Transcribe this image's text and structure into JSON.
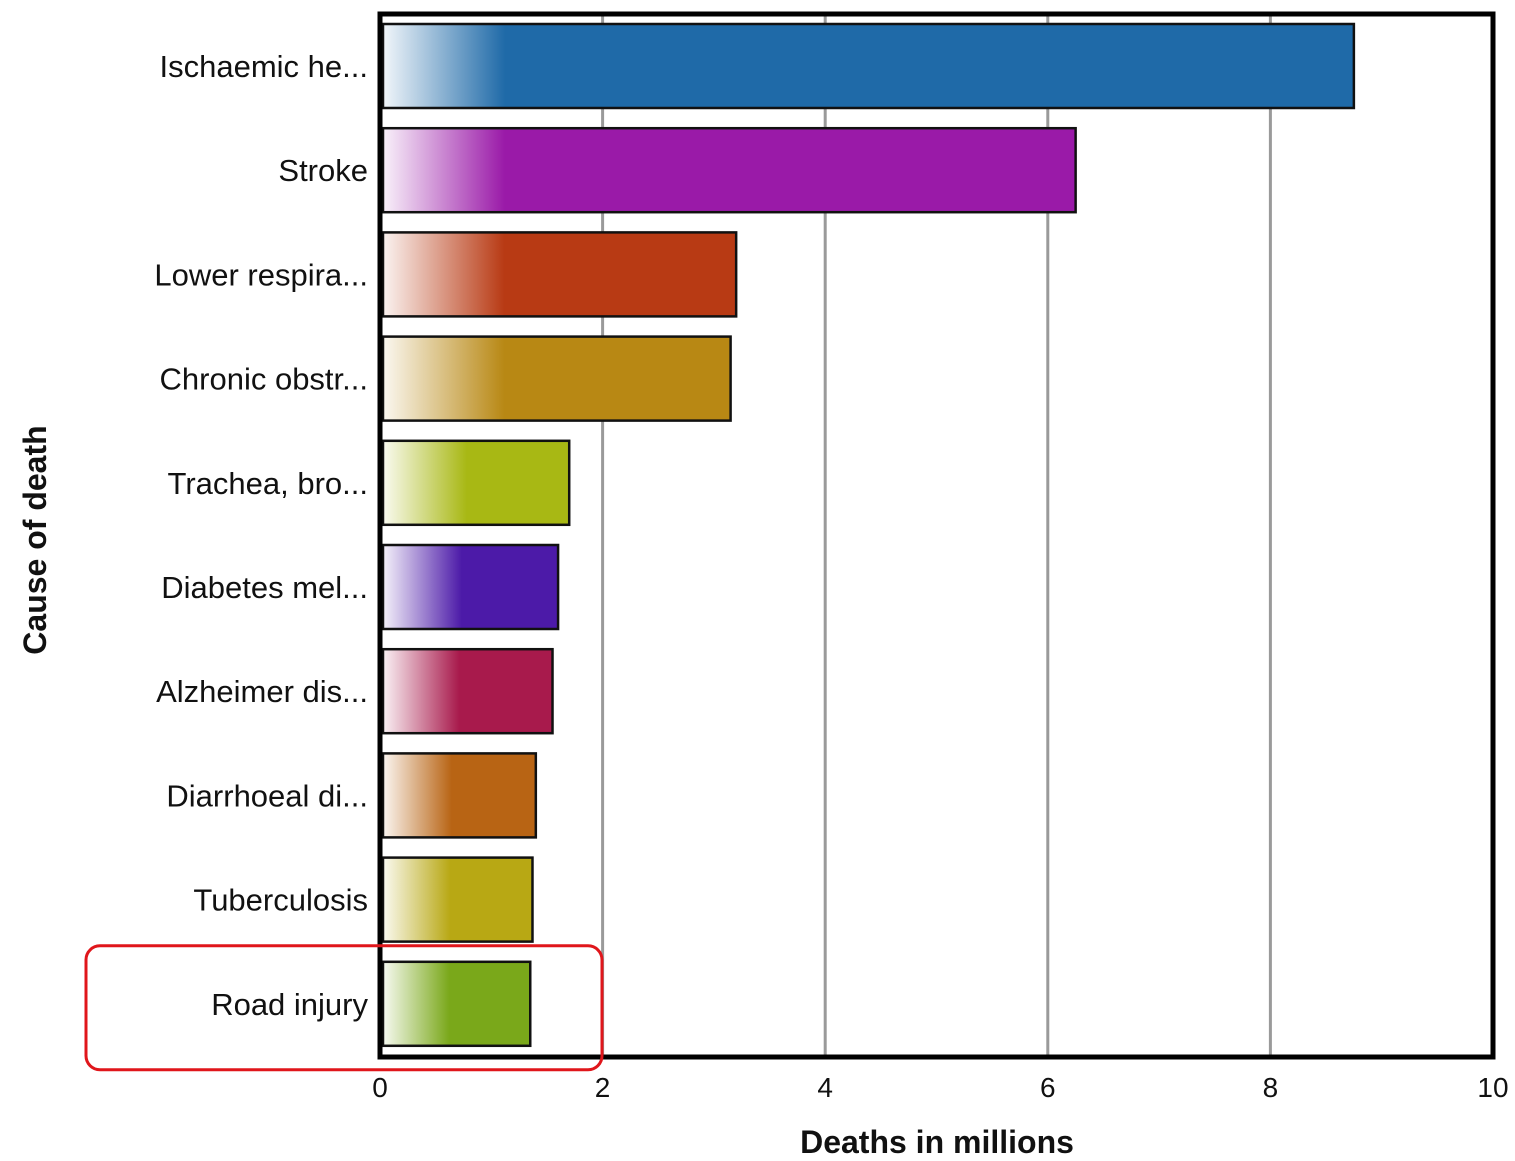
{
  "chart_data": {
    "type": "bar",
    "orientation": "horizontal",
    "categories": [
      "Ischaemic he...",
      "Stroke",
      "Lower respira...",
      "Chronic obstr...",
      "Trachea, bro...",
      "Diabetes mel...",
      "Alzheimer dis...",
      "Diarrhoeal di...",
      "Tuberculosis",
      "Road injury"
    ],
    "values": [
      8.75,
      6.25,
      3.2,
      3.15,
      1.7,
      1.6,
      1.55,
      1.4,
      1.37,
      1.35
    ],
    "colors": [
      "#1f6aa8",
      "#9a1aa8",
      "#b83a14",
      "#b88814",
      "#a8b814",
      "#4c1aa8",
      "#a81a4c",
      "#b86414",
      "#b8a814",
      "#7aa81a"
    ],
    "xlabel": "Deaths in millions",
    "ylabel": "Cause of death",
    "xlim": [
      0,
      10
    ],
    "xticks": [
      "0",
      "2",
      "4",
      "6",
      "8",
      "10"
    ],
    "grid": true,
    "highlighted_category": "Road injury",
    "highlight_color": "#e0161b"
  }
}
